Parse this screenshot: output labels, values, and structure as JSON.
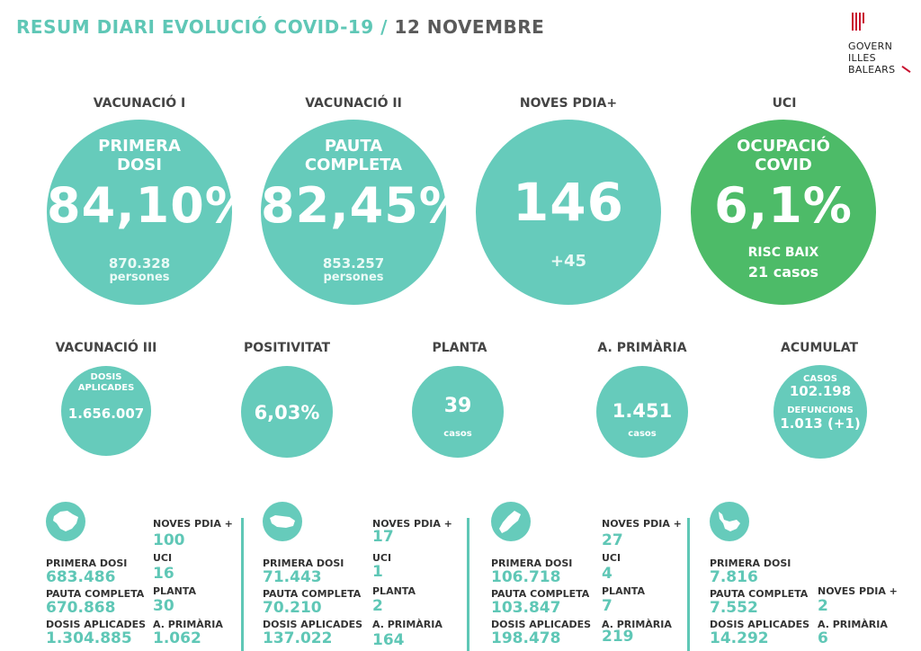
{
  "header": {
    "title_part1": "RESUM DIARI EVOLUCIÓ COVID-19 /",
    "title_part2": "12 NOVEMBRE"
  },
  "logo": {
    "line1": "GOVERN",
    "line2": "ILLES",
    "line3": "BALEARS"
  },
  "big": [
    {
      "heading": "VACUNACIÓ I",
      "sub1": "PRIMERA",
      "sub2": "DOSI",
      "value": "84,10%",
      "foot1": "870.328",
      "foot2": "persones"
    },
    {
      "heading": "VACUNACIÓ II",
      "sub1": "PAUTA",
      "sub2": "COMPLETA",
      "value": "82,45%",
      "foot1": "853.257",
      "foot2": "persones"
    },
    {
      "heading": "NOVES PDIA+",
      "value": "146",
      "foot1": "+45"
    },
    {
      "heading": "UCI",
      "sub1": "OCUPACIÓ",
      "sub2": "COVID",
      "value": "6,1%",
      "foot1": "RISC BAIX",
      "foot2": "21 casos"
    }
  ],
  "small": [
    {
      "heading": "VACUNACIÓ III",
      "sub1": "DOSIS",
      "sub2": "APLICADES",
      "value": "1.656.007"
    },
    {
      "heading": "POSITIVITAT",
      "value": "6,03%"
    },
    {
      "heading": "PLANTA",
      "value": "39",
      "small": "casos"
    },
    {
      "heading": "A. PRIMÀRIA",
      "value": "1.451",
      "small": "casos"
    },
    {
      "heading": "ACUMULAT",
      "sub1": "CASOS",
      "value": "102.198",
      "sub2": "DEFUNCIONS",
      "value2": "1.013 (+1)"
    }
  ],
  "islands": [
    {
      "primera_label": "PRIMERA DOSI",
      "primera": "683.486",
      "pauta_label": "PAUTA COMPLETA",
      "pauta": "670.868",
      "dosis_label": "DOSIS APLICADES",
      "dosis": "1.304.885",
      "pdia_label": "NOVES PDIA +",
      "pdia": "100",
      "uci_label": "UCI",
      "uci": "16",
      "planta_label": "PLANTA",
      "planta": "30",
      "ap_label": "A. PRIMÀRIA",
      "ap": "1.062"
    },
    {
      "primera_label": "PRIMERA DOSI",
      "primera": "71.443",
      "pauta_label": "PAUTA COMPLETA",
      "pauta": "70.210",
      "dosis_label": "DOSIS APLICADES",
      "dosis": "137.022",
      "pdia_label": "NOVES PDIA +",
      "pdia": "17",
      "uci_label": "UCI",
      "uci": "1",
      "planta_label": "PLANTA",
      "planta": "2",
      "ap_label": "A. PRIMÀRIA",
      "ap": "164"
    },
    {
      "primera_label": "PRIMERA DOSI",
      "primera": "106.718",
      "pauta_label": "PAUTA COMPLETA",
      "pauta": "103.847",
      "dosis_label": "DOSIS APLICADES",
      "dosis": "198.478",
      "pdia_label": "NOVES PDIA +",
      "pdia": "27",
      "uci_label": "UCI",
      "uci": "4",
      "planta_label": "PLANTA",
      "planta": "7",
      "ap_label": "A. PRIMÀRIA",
      "ap": "219"
    },
    {
      "primera_label": "PRIMERA DOSI",
      "primera": "7.816",
      "pauta_label": "PAUTA COMPLETA",
      "pauta": "7.552",
      "dosis_label": "DOSIS APLICADES",
      "dosis": "14.292",
      "pdia_label": "NOVES PDIA +",
      "pdia": "2",
      "ap_label": "A. PRIMÀRIA",
      "ap": "6"
    }
  ],
  "colors": {
    "teal": "#66cbbb",
    "green": "#4dbb68",
    "text_teal": "#5fc7b6",
    "logo_red": "#c8102e"
  },
  "icons": {
    "island_1": "mallorca-icon",
    "island_2": "menorca-icon",
    "island_3": "ibiza-icon",
    "island_4": "formentera-icon",
    "logo": "govern-logo-icon"
  }
}
